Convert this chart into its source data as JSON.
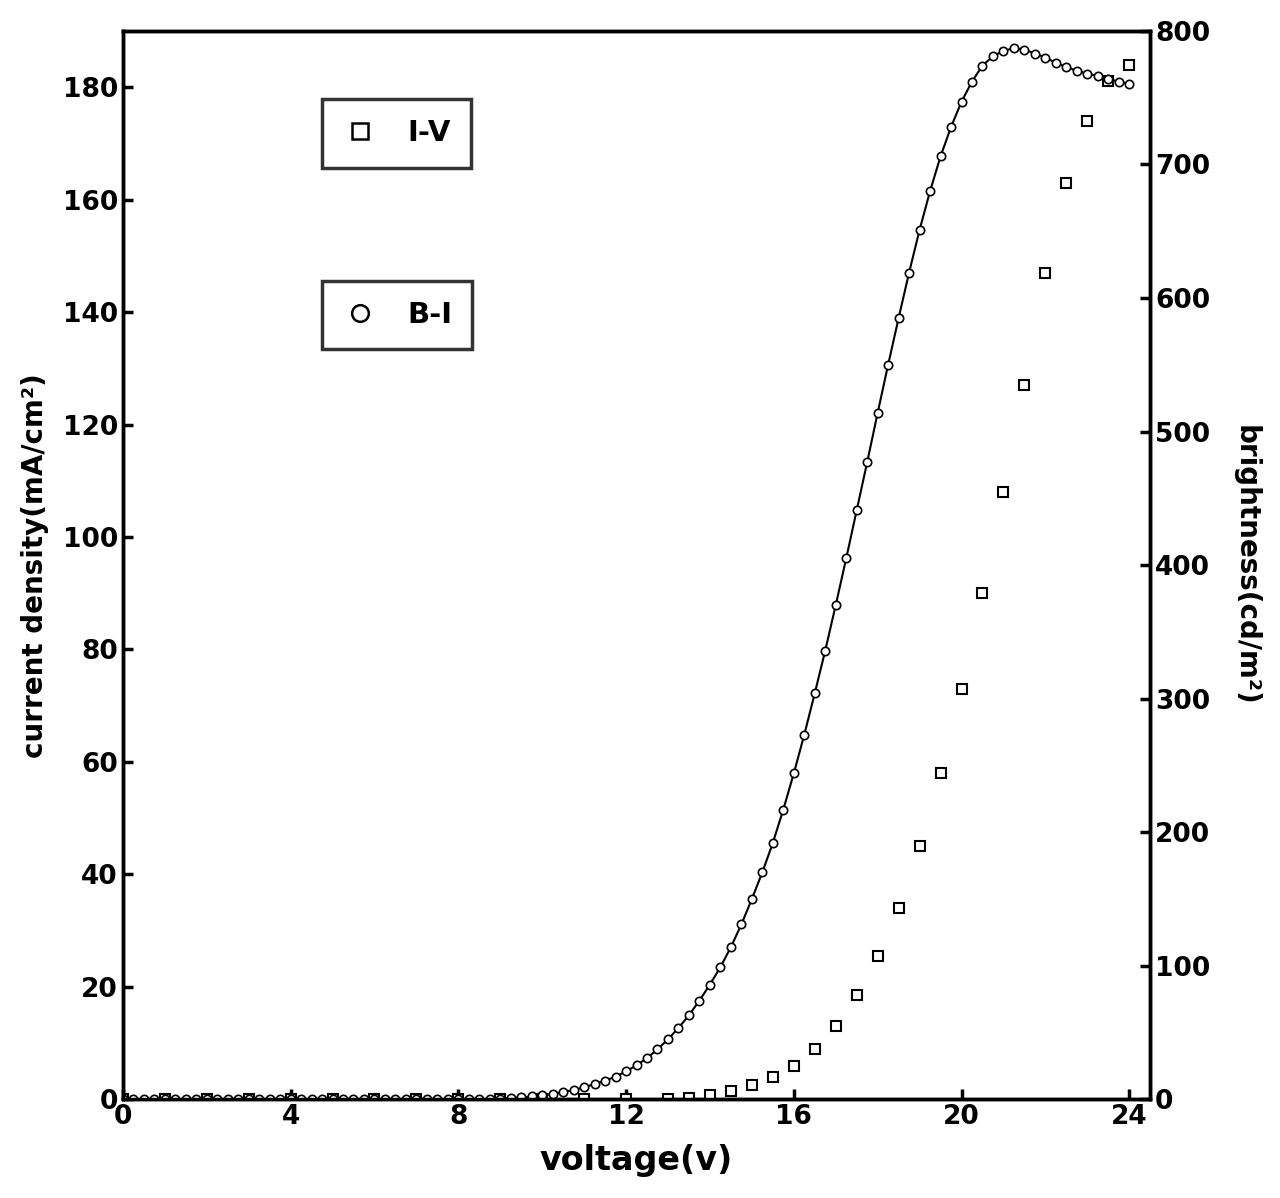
{
  "title": "",
  "xlabel": "voltage(v)",
  "ylabel_left": "current density(mA/cm²)",
  "ylabel_right": "brightness(cd/m²)",
  "xlim": [
    0,
    24.5
  ],
  "ylim_left": [
    0,
    190
  ],
  "ylim_right": [
    0,
    800
  ],
  "xticks": [
    0,
    4,
    8,
    12,
    16,
    20,
    24
  ],
  "yticks_left": [
    0,
    20,
    40,
    60,
    80,
    100,
    120,
    140,
    160,
    180
  ],
  "yticks_right": [
    0,
    100,
    200,
    300,
    400,
    500,
    600,
    700,
    800
  ],
  "legend_iv_label": "I-V",
  "legend_bi_label": "B-I",
  "background_color": "#ffffff",
  "line_color": "#000000",
  "marker_color": "#000000",
  "iv_voltage": [
    0,
    1,
    2,
    3,
    4,
    5,
    6,
    7,
    8,
    9,
    10,
    11,
    12,
    13,
    13.5,
    14.0,
    14.5,
    15.0,
    15.5,
    16.0,
    16.5,
    17.0,
    17.5,
    18.0,
    18.5,
    19.0,
    19.5,
    20.0,
    20.5,
    21.0,
    21.5,
    22.0,
    22.5,
    23.0,
    23.5,
    24.0
  ],
  "iv_current": [
    0,
    0,
    0,
    0,
    0,
    0,
    0,
    0,
    0,
    0,
    0,
    0,
    0,
    0,
    0.3,
    0.8,
    1.5,
    2.5,
    4.0,
    6.0,
    9.0,
    13.0,
    18.5,
    25.5,
    34.0,
    45.0,
    58.0,
    73.0,
    90.0,
    108.0,
    127.0,
    147.0,
    163.0,
    174.0,
    181.0,
    184.0
  ],
  "bi_voltage": [
    0,
    0.25,
    0.5,
    0.75,
    1.0,
    1.25,
    1.5,
    1.75,
    2.0,
    2.25,
    2.5,
    2.75,
    3.0,
    3.25,
    3.5,
    3.75,
    4.0,
    4.25,
    4.5,
    4.75,
    5.0,
    5.25,
    5.5,
    5.75,
    6.0,
    6.25,
    6.5,
    6.75,
    7.0,
    7.25,
    7.5,
    7.75,
    8.0,
    8.25,
    8.5,
    8.75,
    9.0,
    9.25,
    9.5,
    9.75,
    10.0,
    10.25,
    10.5,
    10.75,
    11.0,
    11.25,
    11.5,
    11.75,
    12.0,
    12.25,
    12.5,
    12.75,
    13.0,
    13.25,
    13.5,
    13.75,
    14.0,
    14.25,
    14.5,
    14.75,
    15.0,
    15.25,
    15.5,
    15.75,
    16.0,
    16.25,
    16.5,
    16.75,
    17.0,
    17.25,
    17.5,
    17.75,
    18.0,
    18.25,
    18.5,
    18.75,
    19.0,
    19.25,
    19.5,
    19.75,
    20.0,
    20.25,
    20.5,
    20.75,
    21.0,
    21.25,
    21.5,
    21.75,
    22.0,
    22.25,
    22.5,
    22.75,
    23.0,
    23.25,
    23.5,
    23.75,
    24.0
  ],
  "bi_brightness": [
    0,
    0,
    0,
    0,
    0,
    0,
    0,
    0,
    0,
    0,
    0,
    0,
    0,
    0,
    0,
    0,
    0,
    0,
    0,
    0,
    0,
    0,
    0,
    0,
    0,
    0,
    0,
    0,
    0,
    0,
    0,
    0,
    0,
    0,
    0,
    0,
    0.5,
    1.0,
    1.5,
    2.2,
    3.0,
    4.0,
    5.5,
    7.0,
    9.0,
    11.5,
    14.0,
    17.0,
    21.0,
    25.5,
    31.0,
    37.5,
    45.0,
    53.5,
    63.0,
    74.0,
    86.0,
    99.0,
    114.0,
    131.0,
    150.0,
    170.0,
    192.0,
    217.0,
    244.0,
    273.0,
    304.0,
    336.0,
    370.0,
    405.0,
    441.0,
    477.0,
    514.0,
    550.0,
    585.0,
    619.0,
    651.0,
    680.0,
    706.0,
    728.0,
    747.0,
    762.0,
    774.0,
    781.0,
    785.0,
    787.0,
    786.0,
    783.0,
    780.0,
    776.0,
    773.0,
    770.0,
    768.0,
    766.0,
    764.0,
    762.0,
    760.0
  ]
}
